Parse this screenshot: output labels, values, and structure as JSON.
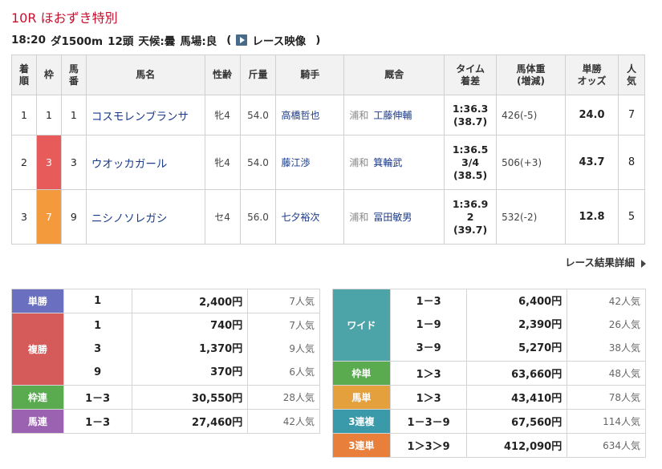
{
  "race": {
    "title": "10R ほおずき特別",
    "time": "18:20",
    "distance": "ダ1500m",
    "runners": "12頭",
    "weather": "天候:曇",
    "track": "馬場:良",
    "video_open": "(",
    "video_label": "レース映像",
    "video_close": ")"
  },
  "result_headers": {
    "rank": [
      "着",
      "順"
    ],
    "frame": "枠",
    "num": [
      "馬",
      "番"
    ],
    "horse": "馬名",
    "sexage": "性齢",
    "weight_carried": "斤量",
    "jockey": "騎手",
    "stable": "厩舎",
    "time": [
      "タイム",
      "着差"
    ],
    "body_weight": [
      "馬体重",
      "(増減)"
    ],
    "odds": [
      "単勝",
      "オッズ"
    ],
    "pop": [
      "人",
      "気"
    ]
  },
  "results": [
    {
      "rank": "1",
      "frame": "1",
      "num": "1",
      "horse": "コスモレンブランサ",
      "sexage": "牝4",
      "kinryo": "54.0",
      "jockey": "高橋哲也",
      "region": "浦和",
      "trainer": "工藤伸輔",
      "time": "1:36.3",
      "margin": "",
      "agari": "(38.7)",
      "body": "426(-5)",
      "odds": "24.0",
      "pop": "7"
    },
    {
      "rank": "2",
      "frame": "3",
      "num": "3",
      "horse": "ウオッカガール",
      "sexage": "牝4",
      "kinryo": "54.0",
      "jockey": "藤江渉",
      "region": "浦和",
      "trainer": "箕輪武",
      "time": "1:36.5",
      "margin": "3/4",
      "agari": "(38.5)",
      "body": "506(+3)",
      "odds": "43.7",
      "pop": "8"
    },
    {
      "rank": "3",
      "frame": "7",
      "num": "9",
      "horse": "ニシノソレガシ",
      "sexage": "セ4",
      "kinryo": "56.0",
      "jockey": "七夕裕次",
      "region": "浦和",
      "trainer": "冨田敏男",
      "time": "1:36.9",
      "margin": "2",
      "agari": "(39.7)",
      "body": "532(-2)",
      "odds": "12.8",
      "pop": "5"
    }
  ],
  "detail_link": "レース結果詳細",
  "payouts_left": {
    "tansho": {
      "label": "単勝",
      "comb": "1",
      "amount": "2,400円",
      "pop": "7人気"
    },
    "fukusho": {
      "label": "複勝",
      "rows": [
        {
          "comb": "1",
          "amount": "740円",
          "pop": "7人気"
        },
        {
          "comb": "3",
          "amount": "1,370円",
          "pop": "9人気"
        },
        {
          "comb": "9",
          "amount": "370円",
          "pop": "6人気"
        }
      ]
    },
    "wakuren": {
      "label": "枠連",
      "comb": "1－3",
      "amount": "30,550円",
      "pop": "28人気"
    },
    "umaren": {
      "label": "馬連",
      "comb": "1－3",
      "amount": "27,460円",
      "pop": "42人気"
    }
  },
  "payouts_right": {
    "wide": {
      "label": "ワイド",
      "rows": [
        {
          "comb": "1－3",
          "amount": "6,400円",
          "pop": "42人気"
        },
        {
          "comb": "1－9",
          "amount": "2,390円",
          "pop": "26人気"
        },
        {
          "comb": "3－9",
          "amount": "5,270円",
          "pop": "38人気"
        }
      ]
    },
    "wakutan": {
      "label": "枠単",
      "comb": "1＞3",
      "amount": "63,660円",
      "pop": "48人気"
    },
    "umatan": {
      "label": "馬単",
      "comb": "1＞3",
      "amount": "43,410円",
      "pop": "78人気"
    },
    "sanrenpuku": {
      "label": "3連複",
      "comb": "1－3－9",
      "amount": "67,560円",
      "pop": "114人気"
    },
    "sanrentan": {
      "label": "3連単",
      "comb": "1＞3＞9",
      "amount": "412,090円",
      "pop": "634人気"
    }
  }
}
